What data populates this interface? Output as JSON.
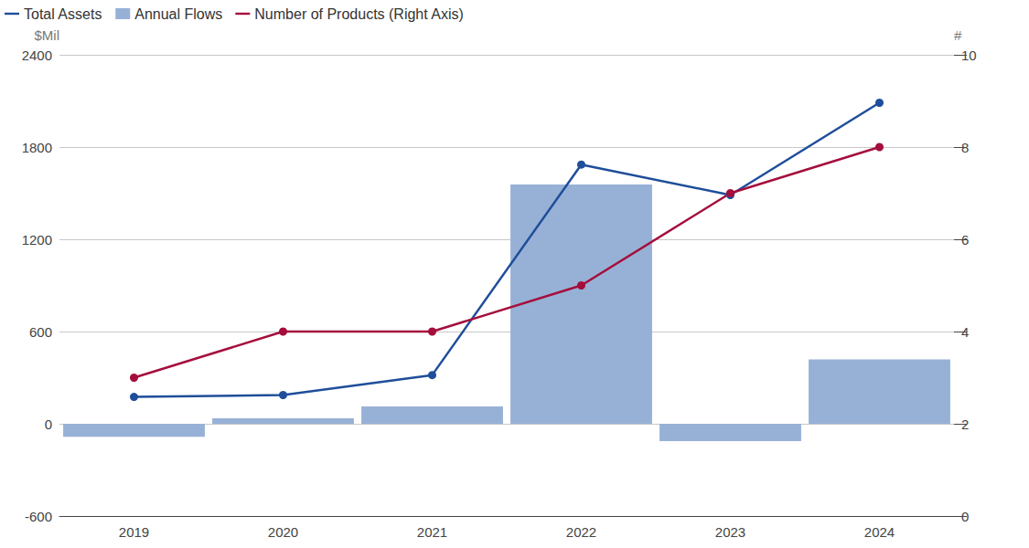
{
  "chart_data": {
    "type": "bar",
    "categories": [
      "2019",
      "2020",
      "2021",
      "2022",
      "2023",
      "2024"
    ],
    "series": [
      {
        "name": "Total Assets",
        "type": "line",
        "color": "#1f4e9a",
        "marker": "circle",
        "values": [
          175,
          187,
          317,
          1686,
          1488,
          2088
        ]
      },
      {
        "name": "Annual Flows",
        "type": "bar",
        "color": "#97b1d6",
        "values": [
          -85,
          35,
          113,
          1556,
          -113,
          419
        ]
      },
      {
        "name": "Number of Products (Right Axis)",
        "type": "line",
        "axis": "y2",
        "color": "#a50e3c",
        "marker": "circle",
        "values": [
          3,
          4,
          4,
          5,
          7,
          8
        ]
      }
    ],
    "ylim": [
      -600,
      2400
    ],
    "yticks": [
      -600,
      0,
      600,
      1200,
      1800,
      2400
    ],
    "y2lim": [
      0,
      10
    ],
    "y2ticks": [
      0,
      2,
      4,
      6,
      8,
      10
    ],
    "ylabel": "$Mil",
    "y2label": "#",
    "grid": true,
    "legend": "top-left"
  }
}
